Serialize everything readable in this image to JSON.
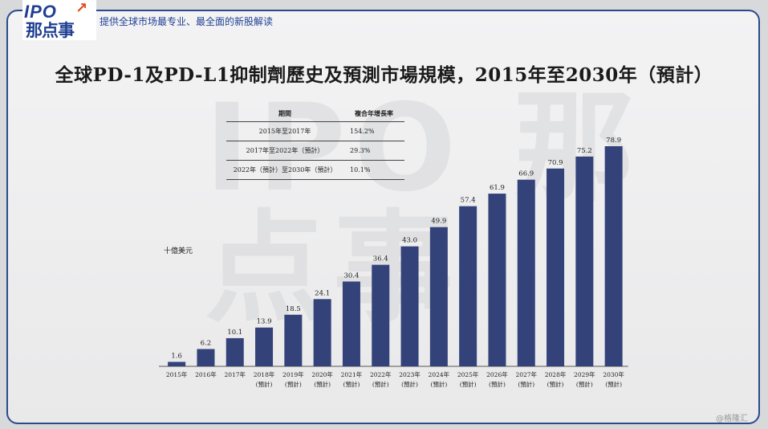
{
  "header": {
    "logo_top": "IPO",
    "logo_bottom": "那点事",
    "tagline": "提供全球市场最专业、最全面的新股解读"
  },
  "watermark_text": "IPO 那点事",
  "credit": "@格隆汇",
  "cagr_table": {
    "headers": [
      "期間",
      "複合年增長率"
    ],
    "rows": [
      {
        "period": "2015年至2017年",
        "rate": "154.2%"
      },
      {
        "period": "2017年至2022年（預計）",
        "rate": "29.3%"
      },
      {
        "period": "2022年（預計）至2030年（預計）",
        "rate": "10.1%"
      }
    ]
  },
  "chart_data": {
    "type": "bar",
    "title": "全球PD-1及PD-L1抑制劑歷史及預測市場規模，2015年至2030年（預計）",
    "ylabel": "十億美元",
    "xlabel": "",
    "categories": [
      "2015年",
      "2016年",
      "2017年",
      "2018年",
      "2019年",
      "2020年",
      "2021年",
      "2022年",
      "2023年",
      "2024年",
      "2025年",
      "2026年",
      "2027年",
      "2028年",
      "2029年",
      "2030年"
    ],
    "forecast_label": "(預計)",
    "forecast_flags": [
      false,
      false,
      false,
      true,
      true,
      true,
      true,
      true,
      true,
      true,
      true,
      true,
      true,
      true,
      true,
      true
    ],
    "values": [
      1.6,
      6.2,
      10.1,
      13.9,
      18.5,
      24.1,
      30.4,
      36.4,
      43.0,
      49.9,
      57.4,
      61.9,
      66.9,
      70.9,
      75.2,
      78.9
    ],
    "value_labels": [
      "1.6",
      "6.2",
      "10.1",
      "13.9",
      "18.5",
      "24.1",
      "30.4",
      "36.4",
      "43.0",
      "49.9",
      "57.4",
      "61.9",
      "66.9",
      "70.9",
      "75.2",
      "78.9"
    ],
    "ylim": [
      0,
      80
    ],
    "grid": false,
    "bar_color": "#34427a"
  }
}
